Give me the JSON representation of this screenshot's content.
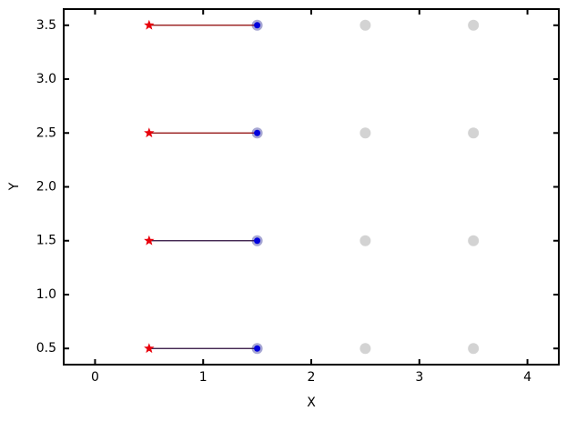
{
  "chart_data": {
    "type": "scatter",
    "x_label": "X",
    "y_label": "Y",
    "xlim": [
      -0.29,
      4.29
    ],
    "ylim": [
      0.35,
      3.65
    ],
    "xticks": [
      0,
      1,
      2,
      3,
      4
    ],
    "yticks": [
      0.5,
      {
        "value": 1,
        "label": "1.0"
      },
      1.5,
      {
        "value": 2,
        "label": "2.0"
      },
      2.5,
      {
        "value": 3,
        "label": "3.0"
      },
      3.5
    ],
    "ticks_inside": true,
    "ticks_all_sides": true,
    "series": [
      {
        "marker": "circle",
        "color": "#d3d3d3",
        "x": [
          1.5,
          2.5,
          3.5,
          1.5,
          2.5,
          3.5,
          1.5,
          2.5,
          3.5,
          1.5,
          2.5,
          3.5
        ],
        "values": [
          0.5,
          0.5,
          0.5,
          1.5,
          1.5,
          1.5,
          2.5,
          2.5,
          2.5,
          3.5,
          3.5,
          3.5
        ]
      },
      {
        "marker": "line",
        "color": "#2a0a3a",
        "x": [
          0.5,
          1.5
        ],
        "values": [
          0.5,
          0.5
        ]
      },
      {
        "marker": "line",
        "color": "#2a0a3a",
        "x": [
          0.5,
          1.5
        ],
        "values": [
          1.5,
          1.5
        ]
      },
      {
        "marker": "line",
        "color": "#8b0000",
        "x": [
          0.5,
          1.5
        ],
        "values": [
          2.5,
          2.5
        ]
      },
      {
        "marker": "line",
        "color": "#8b0000",
        "x": [
          0.5,
          1.5
        ],
        "values": [
          3.5,
          3.5
        ]
      },
      {
        "marker": "star",
        "color": "#e8000b",
        "x": [
          0.5,
          0.5,
          0.5,
          0.5
        ],
        "values": [
          0.5,
          1.5,
          2.5,
          3.5
        ]
      },
      {
        "marker": "circle-halo",
        "color": "#0000dd",
        "x": [
          1.5,
          1.5,
          1.5,
          1.5
        ],
        "values": [
          0.5,
          1.5,
          2.5,
          3.5
        ]
      }
    ]
  }
}
